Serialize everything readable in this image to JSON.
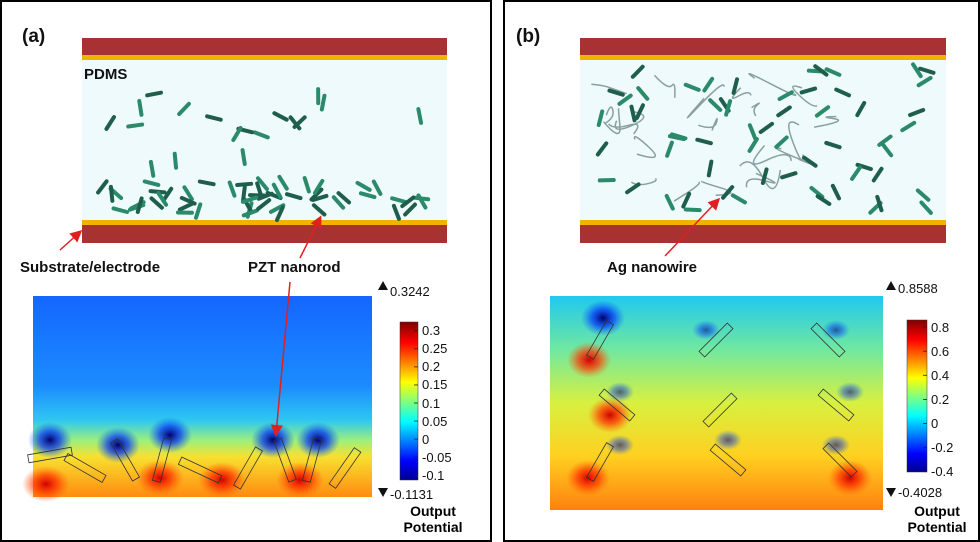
{
  "panels": [
    {
      "label": "(a)",
      "matrix": "PDMS",
      "callouts": [
        "Substrate/electrode",
        "PZT nanorod"
      ],
      "colorbar": {
        "max": 0.3242,
        "min": -0.1131,
        "ticks": [
          0.3,
          0.25,
          0.2,
          0.15,
          0.1,
          0.05,
          0,
          -0.05,
          -0.1
        ],
        "title": "Output Potential"
      }
    },
    {
      "label": "(b)",
      "callouts": [
        "Ag nanowire"
      ],
      "colorbar": {
        "max": 0.8588,
        "min": -0.4028,
        "ticks": [
          0.8,
          0.6,
          0.4,
          0.2,
          0,
          -0.2,
          -0.4
        ],
        "title": "Output Potential"
      }
    }
  ]
}
